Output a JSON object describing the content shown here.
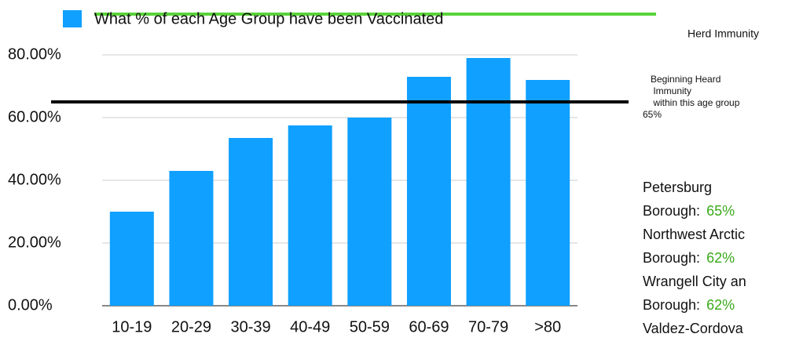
{
  "chart_data": {
    "type": "bar",
    "series": [
      {
        "name": "What % of each Age Group have been Vaccinated",
        "color": "#10a0ff",
        "values": [
          30,
          43,
          53.5,
          57.5,
          60,
          73,
          79,
          72
        ]
      }
    ],
    "categories": [
      "10-19",
      "20-29",
      "30-39",
      "40-49",
      "50-59",
      "60-69",
      "70-79",
      ">80"
    ],
    "ylim": [
      0,
      80
    ],
    "yticks": [
      {
        "value": 0,
        "label": "0.00%"
      },
      {
        "value": 20,
        "label": "20.00%"
      },
      {
        "value": 40,
        "label": "40.00%"
      },
      {
        "value": 60,
        "label": "60.00%"
      },
      {
        "value": 80,
        "label": "80.00%"
      }
    ],
    "grid": true,
    "reference_lines": [
      {
        "label_lines": [
          "Herd Immunity"
        ],
        "value": 93,
        "color": "#5ad33a"
      },
      {
        "label_lines": [
          "Beginning Heard",
          " Immunity",
          " within this age group"
        ],
        "value": 65,
        "value_label": "65%",
        "color": "#000000"
      }
    ],
    "regions": [
      {
        "lines": [
          "Petersburg",
          "Borough:"
        ],
        "value": 65,
        "value_label": "65%"
      },
      {
        "lines": [
          "Northwest Arctic",
          "Borough:"
        ],
        "value": 62,
        "value_label": "62%"
      },
      {
        "lines": [
          "Wrangell City an",
          "Borough:"
        ],
        "value": 62,
        "value_label": "62%"
      },
      {
        "lines": [
          "Valdez-Cordova"
        ]
      }
    ],
    "region_value_color": "#3aaa1a"
  }
}
